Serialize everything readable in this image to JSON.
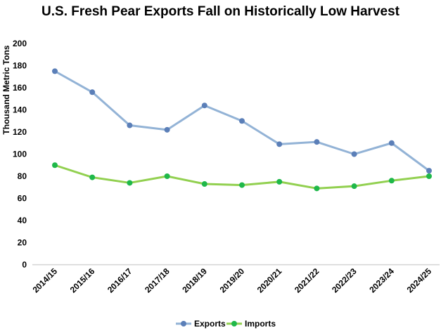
{
  "chart_data": {
    "type": "line",
    "title": "U.S. Fresh Pear Exports Fall on Historically Low Harvest",
    "xlabel": "",
    "ylabel": "Thousand Metric Tons",
    "ylim": [
      0,
      200
    ],
    "yticks": [
      "0",
      "20",
      "40",
      "60",
      "80",
      "100",
      "120",
      "140",
      "160",
      "180",
      "200"
    ],
    "categories": [
      "2014/15",
      "2015/16",
      "2016/17",
      "2017/18",
      "2018/19",
      "2019/20",
      "2020/21",
      "2021/22",
      "2022/23",
      "2023/24",
      "2024/25"
    ],
    "series": [
      {
        "name": "Exports",
        "line_color": "#93b3d6",
        "marker_color": "#5b7fb8",
        "values": [
          175,
          156,
          126,
          122,
          144,
          130,
          109,
          111,
          100,
          110,
          85
        ]
      },
      {
        "name": "Imports",
        "line_color": "#92d050",
        "marker_color": "#1fb84a",
        "values": [
          90,
          79,
          74,
          80,
          73,
          72,
          75,
          69,
          71,
          76,
          80
        ]
      }
    ],
    "grid": false,
    "legend_position": "bottom-center"
  }
}
